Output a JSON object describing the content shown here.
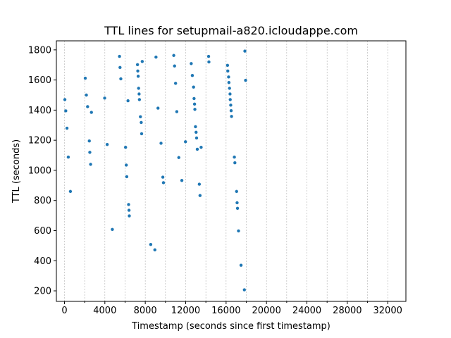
{
  "chart_data": {
    "type": "scatter",
    "title": "TTL lines for setupmail-a820.icloudappe.com",
    "xlabel": "Timestamp (seconds since first timestamp)",
    "ylabel": "TTL (seconds)",
    "xlim": [
      -800,
      33800
    ],
    "ylim": [
      130,
      1860
    ],
    "x_ticks": [
      0,
      4000,
      8000,
      12000,
      16000,
      20000,
      24000,
      28000,
      32000
    ],
    "x_tick_labels": [
      "0",
      "4000",
      "8000",
      "12000",
      "16000",
      "20000",
      "24000",
      "28000",
      "32000"
    ],
    "x_minor_ticks": [
      2000,
      6000,
      10000,
      14000,
      18000,
      22000,
      26000,
      30000,
      34000
    ],
    "y_ticks": [
      200,
      400,
      600,
      800,
      1000,
      1200,
      1400,
      1600,
      1800
    ],
    "y_tick_labels": [
      "200",
      "400",
      "600",
      "800",
      "1000",
      "1200",
      "1400",
      "1600",
      "1800"
    ],
    "grid": "vertical dashed at every 2000",
    "marker_color": "#1f77b4",
    "points": [
      [
        40,
        1470
      ],
      [
        130,
        1395
      ],
      [
        250,
        1280
      ],
      [
        380,
        1088
      ],
      [
        590,
        860
      ],
      [
        2060,
        1612
      ],
      [
        2170,
        1500
      ],
      [
        2290,
        1423
      ],
      [
        2460,
        1195
      ],
      [
        2510,
        1120
      ],
      [
        2590,
        1040
      ],
      [
        2670,
        1385
      ],
      [
        3980,
        1480
      ],
      [
        4230,
        1172
      ],
      [
        4740,
        608
      ],
      [
        5450,
        1757
      ],
      [
        5500,
        1683
      ],
      [
        5580,
        1608
      ],
      [
        6050,
        1153
      ],
      [
        6120,
        1035
      ],
      [
        6170,
        958
      ],
      [
        6290,
        1462
      ],
      [
        6350,
        773
      ],
      [
        6390,
        735
      ],
      [
        6420,
        698
      ],
      [
        7230,
        1702
      ],
      [
        7260,
        1660
      ],
      [
        7300,
        1625
      ],
      [
        7340,
        1545
      ],
      [
        7390,
        1507
      ],
      [
        7420,
        1470
      ],
      [
        7520,
        1356
      ],
      [
        7600,
        1318
      ],
      [
        7640,
        1243
      ],
      [
        7700,
        1723
      ],
      [
        8540,
        508
      ],
      [
        8950,
        472
      ],
      [
        9060,
        1752
      ],
      [
        9260,
        1413
      ],
      [
        9560,
        1180
      ],
      [
        9740,
        955
      ],
      [
        9800,
        918
      ],
      [
        10820,
        1763
      ],
      [
        10900,
        1693
      ],
      [
        11000,
        1578
      ],
      [
        11120,
        1390
      ],
      [
        11320,
        1085
      ],
      [
        11620,
        933
      ],
      [
        11980,
        1190
      ],
      [
        12550,
        1709
      ],
      [
        12660,
        1630
      ],
      [
        12780,
        1553
      ],
      [
        12830,
        1477
      ],
      [
        12880,
        1440
      ],
      [
        12910,
        1405
      ],
      [
        12970,
        1290
      ],
      [
        13030,
        1253
      ],
      [
        13080,
        1215
      ],
      [
        13150,
        1140
      ],
      [
        13350,
        908
      ],
      [
        13420,
        833
      ],
      [
        13530,
        1153
      ],
      [
        14270,
        1757
      ],
      [
        14300,
        1720
      ],
      [
        16140,
        1697
      ],
      [
        16170,
        1660
      ],
      [
        16250,
        1620
      ],
      [
        16280,
        1583
      ],
      [
        16340,
        1545
      ],
      [
        16390,
        1507
      ],
      [
        16410,
        1470
      ],
      [
        16460,
        1433
      ],
      [
        16500,
        1396
      ],
      [
        16540,
        1358
      ],
      [
        16820,
        1088
      ],
      [
        16870,
        1050
      ],
      [
        17040,
        860
      ],
      [
        17090,
        785
      ],
      [
        17130,
        748
      ],
      [
        17230,
        598
      ],
      [
        17480,
        370
      ],
      [
        17810,
        207
      ],
      [
        17860,
        1792
      ],
      [
        17930,
        1598
      ]
    ]
  }
}
